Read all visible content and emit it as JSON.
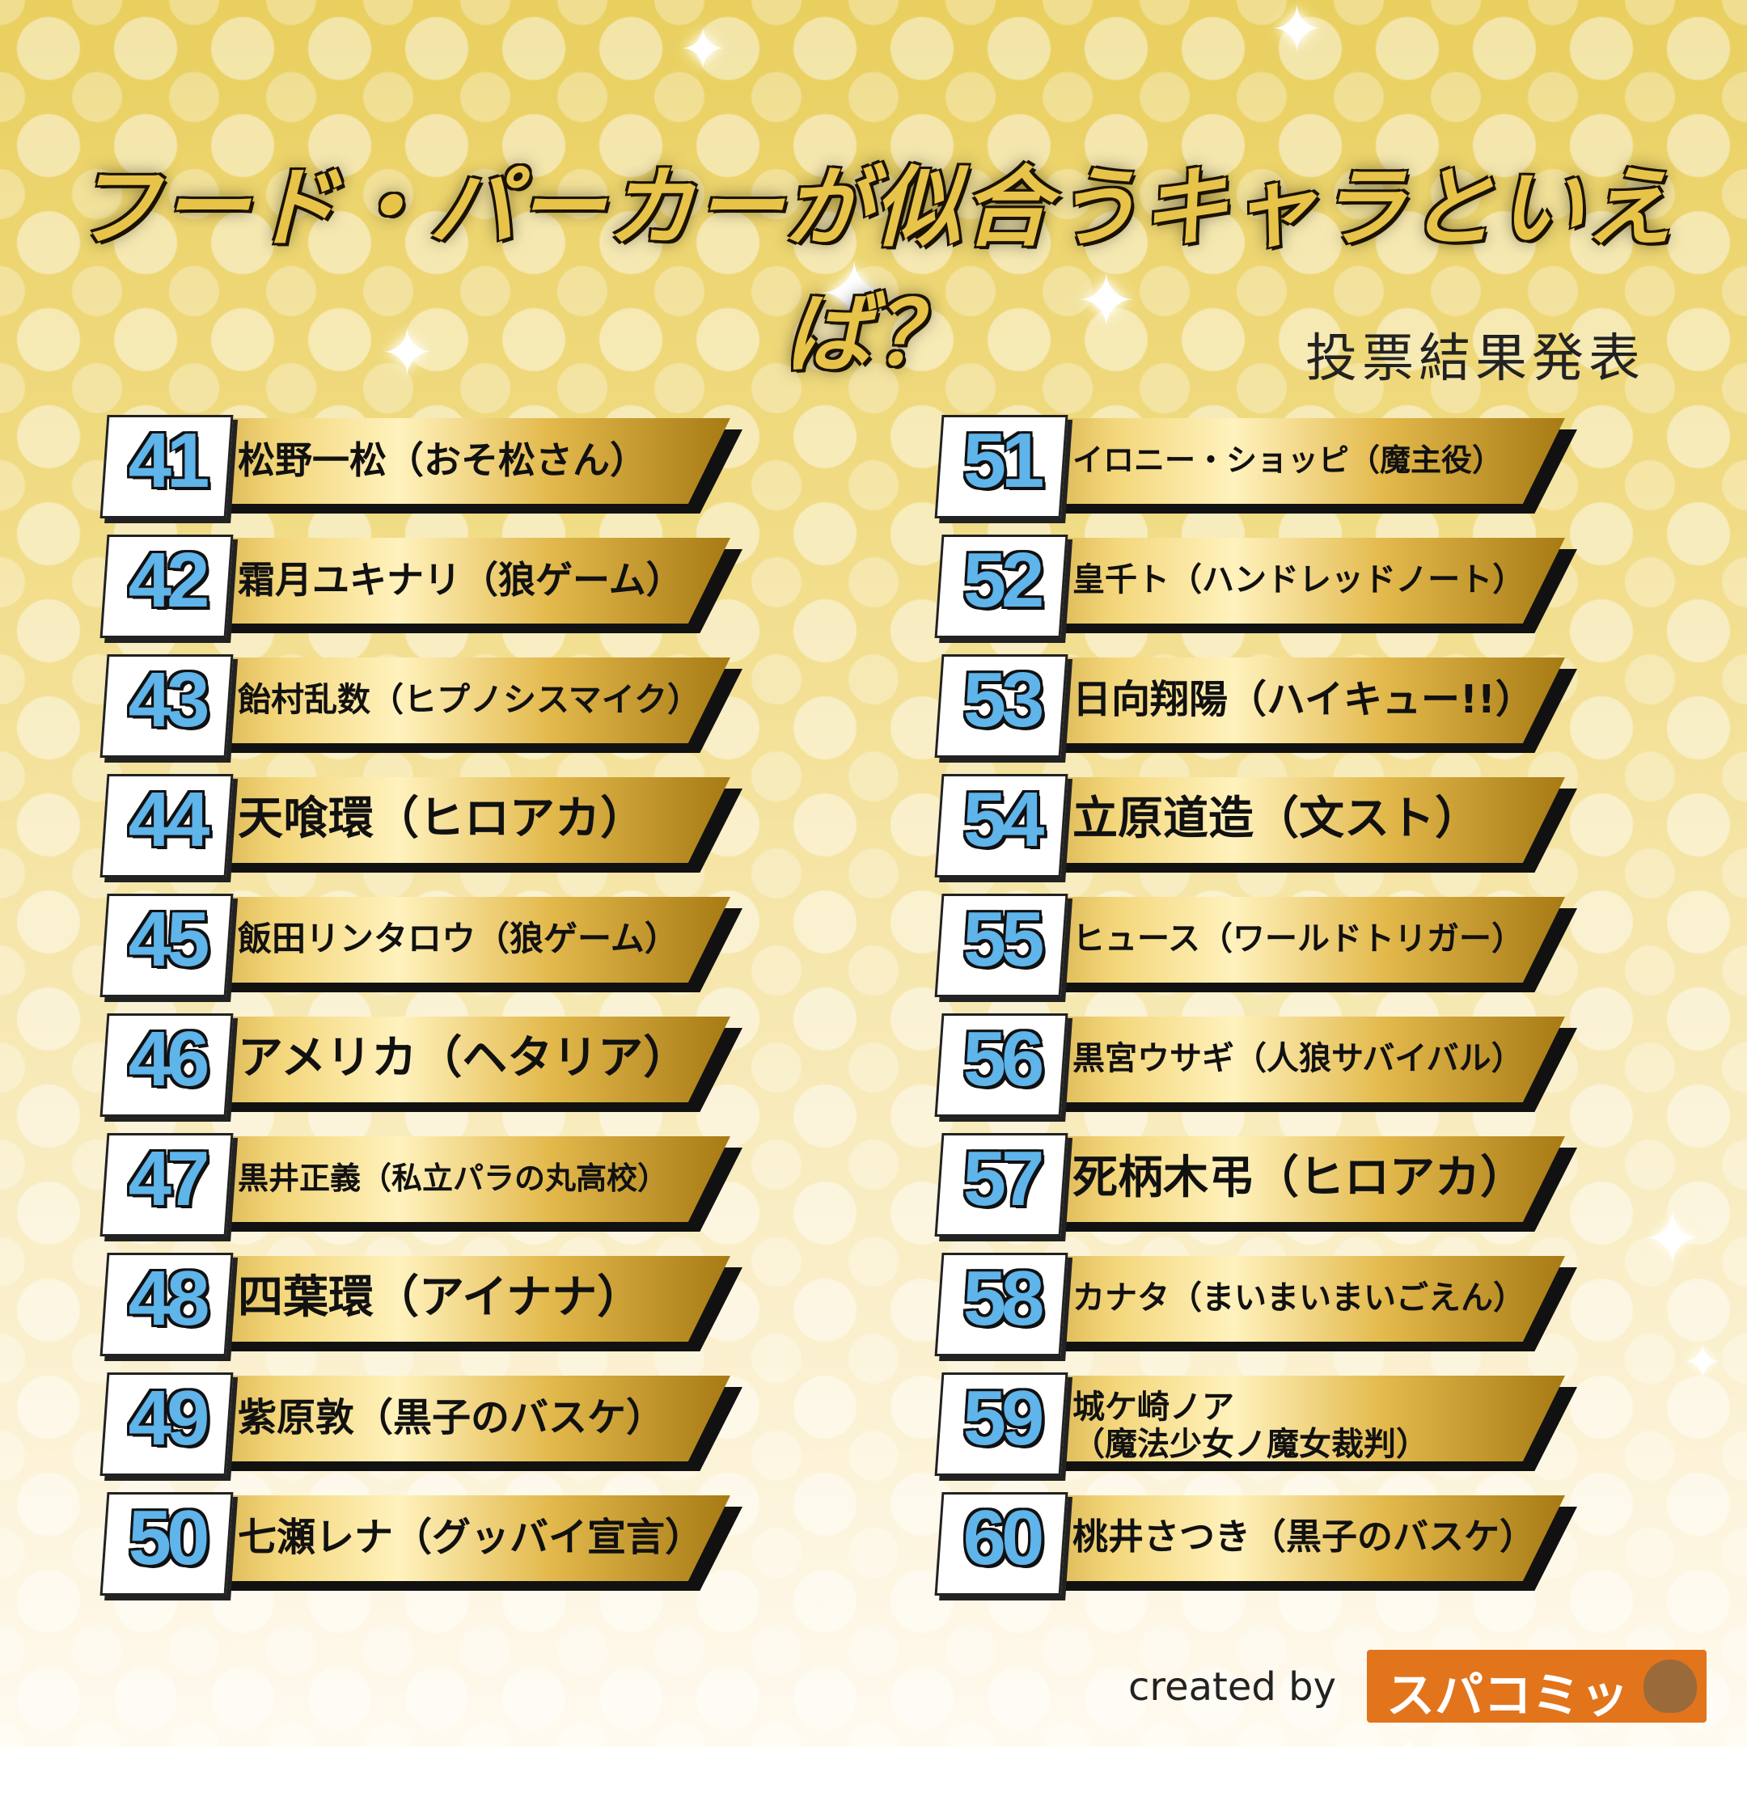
{
  "title": "フード・パーカーが似合うキャラといえば？",
  "subtitle": "投票結果発表",
  "ranking_left": [
    {
      "rank": "41",
      "name": "松野一松（おそ松さん）"
    },
    {
      "rank": "42",
      "name": "霜月ユキナリ（狼ゲーム）"
    },
    {
      "rank": "43",
      "name": "飴村乱数（ヒプノシスマイク）"
    },
    {
      "rank": "44",
      "name": "天喰環（ヒロアカ）"
    },
    {
      "rank": "45",
      "name": "飯田リンタロウ（狼ゲーム）"
    },
    {
      "rank": "46",
      "name": "アメリカ（ヘタリア）"
    },
    {
      "rank": "47",
      "name": "黒井正義（私立パラの丸高校）"
    },
    {
      "rank": "48",
      "name": "四葉環（アイナナ）"
    },
    {
      "rank": "49",
      "name": "紫原敦（黒子のバスケ）"
    },
    {
      "rank": "50",
      "name": "七瀬レナ（グッバイ宣言）"
    }
  ],
  "ranking_right": [
    {
      "rank": "51",
      "name": "イロニー・ショッピ（魔主役）"
    },
    {
      "rank": "52",
      "name": "皇千ト（ハンドレッドノート）"
    },
    {
      "rank": "53",
      "name": "日向翔陽（ハイキュー!!）"
    },
    {
      "rank": "54",
      "name": "立原道造（文スト）"
    },
    {
      "rank": "55",
      "name": "ヒュース（ワールドトリガー）"
    },
    {
      "rank": "56",
      "name": "黒宮ウサギ（人狼サバイバル）"
    },
    {
      "rank": "57",
      "name": "死柄木弔（ヒロアカ）"
    },
    {
      "rank": "58",
      "name": "カナタ（まいまいまいごえん）"
    },
    {
      "rank": "59",
      "name": "城ケ崎ノア（魔法少女ノ魔女裁判）",
      "line1": "城ケ崎ノア",
      "line2": "（魔法少女ノ魔女裁判）"
    },
    {
      "rank": "60",
      "name": "桃井さつき（黒子のバスケ）"
    }
  ],
  "credit": "created by",
  "logo": "スパコミック!!",
  "logo_icon": "capybara-icon",
  "colors": {
    "number": "#5fb4ea",
    "logo_bg": "#e2741c",
    "title": "#e8c34a"
  }
}
